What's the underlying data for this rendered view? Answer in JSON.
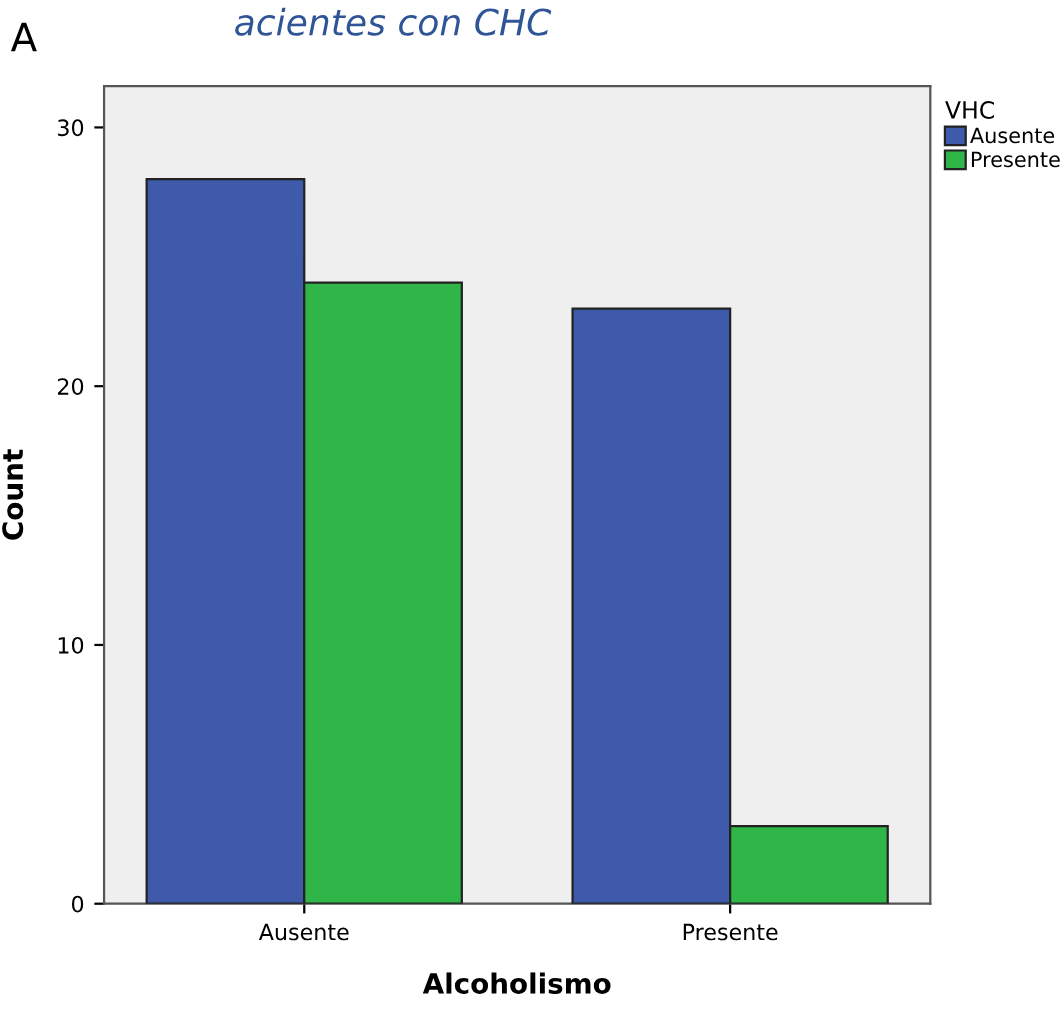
{
  "chart_data": {
    "type": "bar",
    "title": "acientes con CHC",
    "annotations": [
      "A"
    ],
    "xlabel": "Alcoholismo",
    "ylabel": "Count",
    "legend_title": "VHC",
    "categories": [
      "Ausente",
      "Presente"
    ],
    "series": [
      {
        "name": "Ausente",
        "color": "#3f59ab",
        "values": [
          28,
          23
        ]
      },
      {
        "name": "Presente",
        "color": "#30b648",
        "values": [
          24,
          3
        ]
      }
    ],
    "ylim": [
      0,
      31.6
    ],
    "yticks": [
      0,
      10,
      20,
      30
    ],
    "grid": false,
    "legend": "top right"
  }
}
